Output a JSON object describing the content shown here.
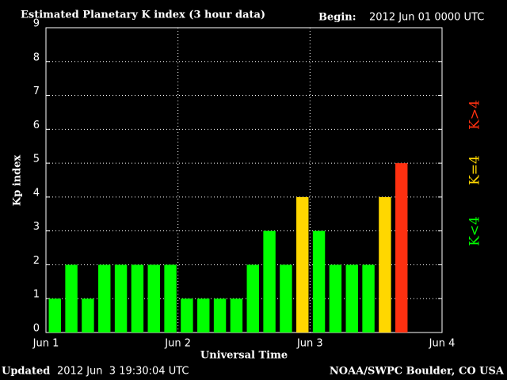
{
  "chart_data": {
    "type": "bar",
    "title": "Estimated Planetary K index (3 hour data)",
    "begin_label": "Begin:",
    "begin_value": "2012 Jun 01 0000 UTC",
    "y_label": "Kp index",
    "x_label": "Universal Time",
    "updated_label": "Updated",
    "updated_value": "2012 Jun  3 19:30:04 UTC",
    "source": "NOAA/SWPC Boulder, CO USA",
    "x": [
      0,
      3,
      6,
      9,
      12,
      15,
      18,
      21,
      24,
      27,
      30,
      33,
      36,
      39,
      42,
      45,
      48,
      51,
      54,
      57,
      60,
      63
    ],
    "values": [
      1,
      2,
      1,
      2,
      2,
      2,
      2,
      2,
      1,
      1,
      1,
      1,
      2,
      3,
      2,
      4,
      3,
      2,
      2,
      2,
      4,
      5
    ],
    "bar_colors": [
      "#00ff00",
      "#00ff00",
      "#00ff00",
      "#00ff00",
      "#00ff00",
      "#00ff00",
      "#00ff00",
      "#00ff00",
      "#00ff00",
      "#00ff00",
      "#00ff00",
      "#00ff00",
      "#00ff00",
      "#00ff00",
      "#00ff00",
      "#ffd700",
      "#00ff00",
      "#00ff00",
      "#00ff00",
      "#00ff00",
      "#ffd700",
      "#ff3010"
    ],
    "xlim": [
      0,
      72
    ],
    "xticks": [
      {
        "value": 0,
        "label": "Jun 1"
      },
      {
        "value": 24,
        "label": "Jun 2"
      },
      {
        "value": 48,
        "label": "Jun 3"
      },
      {
        "value": 72,
        "label": "Jun 4"
      }
    ],
    "ylim": [
      0,
      9
    ],
    "yticks": [
      0,
      1,
      2,
      3,
      4,
      5,
      6,
      7,
      8,
      9
    ],
    "grid": true,
    "legend": [
      {
        "name": "K<4",
        "color": "#00ff00"
      },
      {
        "name": "K=4",
        "color": "#ffd700"
      },
      {
        "name": "K>4",
        "color": "#ff3010"
      }
    ]
  }
}
